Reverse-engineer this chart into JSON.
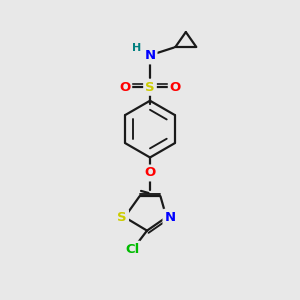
{
  "bg_color": "#e8e8e8",
  "bond_color": "#1a1a1a",
  "bond_width": 1.6,
  "atom_colors": {
    "S": "#cccc00",
    "O": "#ff0000",
    "N": "#0000ff",
    "Cl": "#00bb00",
    "H": "#008080",
    "C": "#1a1a1a"
  },
  "fs": 9.5,
  "fss": 8.0
}
